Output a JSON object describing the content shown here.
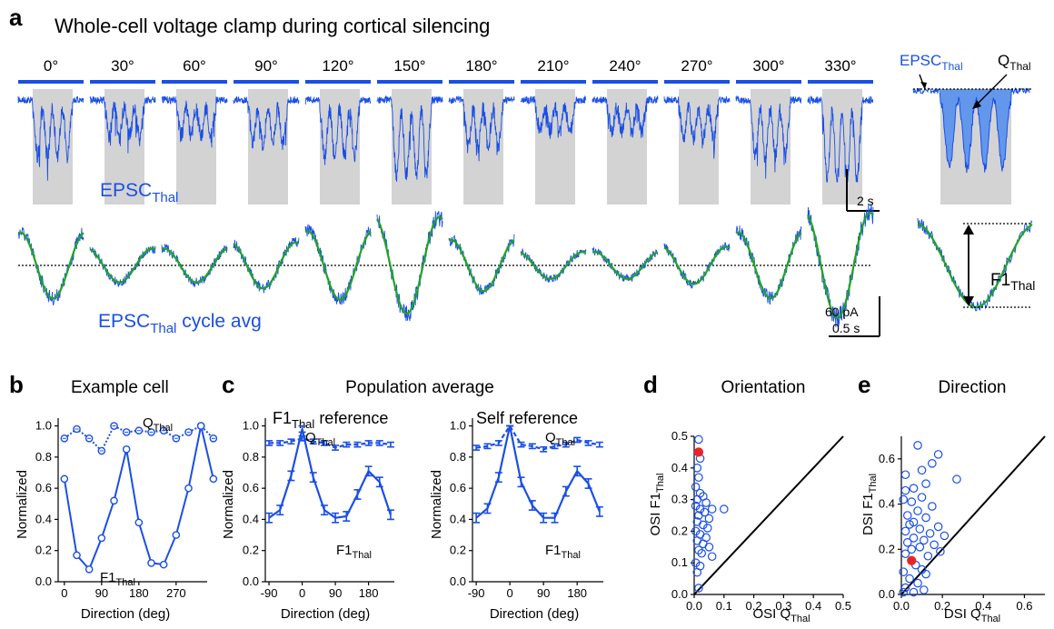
{
  "panel_a": {
    "letter": "a",
    "title": "Whole-cell voltage clamp during cortical silencing",
    "directions": [
      "0°",
      "30°",
      "60°",
      "90°",
      "120°",
      "150°",
      "180°",
      "210°",
      "240°",
      "270°",
      "300°",
      "330°"
    ],
    "epsc_label": "EPSC",
    "epsc_sub": "Thal",
    "cycle_label": "EPSC",
    "cycle_sub": "Thal",
    "cycle_suffix": " cycle avg",
    "q_label": "Q",
    "q_sub": "Thal",
    "f1_label": "F1",
    "f1_sub": "Thal",
    "scale_time_1": "2 s",
    "scale_current": "60 pA",
    "scale_time_2": "0.5 s",
    "cycle_amplitudes": [
      0.55,
      0.18,
      0.18,
      0.32,
      0.58,
      0.9,
      0.38,
      0.1,
      0.1,
      0.22,
      0.55,
      1.0
    ],
    "trace_color": "#1a4fe6",
    "fit_color": "#22a322",
    "stim_color": "#d3d3d3"
  },
  "panel_b": {
    "letter": "b",
    "title": "Example cell",
    "ylabel": "Normalized",
    "xlabel": "Direction (deg)",
    "xticks": [
      "0",
      "90",
      "180",
      "270"
    ],
    "yticks": [
      "0.0",
      "0.2",
      "0.4",
      "0.6",
      "0.8",
      "1.0"
    ],
    "q_label": "Q",
    "q_sub": "Thal",
    "f1_label": "F1",
    "f1_sub": "Thal"
  },
  "panel_c": {
    "letter": "c",
    "title": "Population average",
    "left_title": "F1",
    "left_title_sub": "Thal",
    "left_title_suffix": " reference",
    "right_title": "Self reference",
    "ylabel": "Normalized",
    "xlabel": "Direction (deg)",
    "xticks": [
      "-90",
      "0",
      "90",
      "180"
    ],
    "yticks": [
      "0.0",
      "0.2",
      "0.4",
      "0.6",
      "0.8",
      "1.0"
    ],
    "q_label": "Q",
    "q_sub": "Thal",
    "f1_label": "F1",
    "f1_sub": "Thal"
  },
  "panel_d": {
    "letter": "d",
    "title": "Orientation",
    "ylabel": "OSI F1",
    "ylabel_sub": "Thal",
    "xlabel": "OSI Q",
    "xlabel_sub": "Thal",
    "xticks": [
      "0.0",
      "0.1",
      "0.2",
      "0.3",
      "0.4",
      "0.5"
    ],
    "yticks": [
      "0.0",
      "0.1",
      "0.2",
      "0.3",
      "0.4",
      "0.5"
    ]
  },
  "panel_e": {
    "letter": "e",
    "title": "Direction",
    "ylabel": "DSI F1",
    "ylabel_sub": "Thal",
    "xlabel": "DSI Q",
    "xlabel_sub": "Thal",
    "xticks": [
      "0.0",
      "0.2",
      "0.4",
      "0.6"
    ],
    "yticks": [
      "0.0",
      "0.2",
      "0.4",
      "0.6"
    ]
  },
  "chart_data": [
    {
      "type": "line",
      "panel": "b",
      "title": "Example cell",
      "xlabel": "Direction (deg)",
      "ylabel": "Normalized",
      "xlim": [
        -15,
        345
      ],
      "ylim": [
        0,
        1.05
      ],
      "x": [
        0,
        30,
        60,
        90,
        120,
        150,
        180,
        210,
        240,
        270,
        300,
        330,
        360
      ],
      "series": [
        {
          "name": "QThal",
          "values": [
            0.92,
            0.98,
            0.92,
            0.84,
            1.0,
            0.96,
            0.97,
            0.96,
            0.97,
            0.92,
            0.96,
            1.0,
            0.92
          ]
        },
        {
          "name": "F1Thal",
          "values": [
            0.66,
            0.17,
            0.08,
            0.28,
            0.52,
            0.85,
            0.38,
            0.12,
            0.11,
            0.3,
            0.6,
            1.0,
            0.66
          ]
        }
      ]
    },
    {
      "type": "line",
      "panel": "c-left",
      "title": "F1Thal reference",
      "xlabel": "Direction (deg)",
      "ylabel": "Normalized",
      "xlim": [
        -100,
        250
      ],
      "ylim": [
        0,
        1.05
      ],
      "x": [
        -90,
        -60,
        -30,
        0,
        30,
        60,
        90,
        120,
        150,
        180,
        210,
        240
      ],
      "series": [
        {
          "name": "QThal",
          "values": [
            0.89,
            0.89,
            0.9,
            0.92,
            0.9,
            0.89,
            0.86,
            0.88,
            0.88,
            0.89,
            0.89,
            0.88
          ],
          "error": [
            0.015,
            0.015,
            0.015,
            0.015,
            0.015,
            0.015,
            0.015,
            0.015,
            0.015,
            0.015,
            0.015,
            0.015
          ]
        },
        {
          "name": "F1Thal",
          "values": [
            0.41,
            0.46,
            0.68,
            0.98,
            0.67,
            0.46,
            0.41,
            0.42,
            0.56,
            0.71,
            0.64,
            0.43
          ],
          "error": [
            0.03,
            0.03,
            0.03,
            0.02,
            0.03,
            0.03,
            0.03,
            0.03,
            0.03,
            0.03,
            0.03,
            0.03
          ]
        }
      ]
    },
    {
      "type": "line",
      "panel": "c-right",
      "title": "Self reference",
      "xlabel": "Direction (deg)",
      "ylabel": "Normalized",
      "xlim": [
        -100,
        250
      ],
      "ylim": [
        0,
        1.05
      ],
      "x": [
        -90,
        -60,
        -30,
        0,
        30,
        60,
        90,
        120,
        150,
        180,
        210,
        240
      ],
      "series": [
        {
          "name": "QThal",
          "values": [
            0.86,
            0.87,
            0.89,
            1.0,
            0.88,
            0.87,
            0.85,
            0.87,
            0.88,
            0.91,
            0.89,
            0.88
          ],
          "error": [
            0.015,
            0.015,
            0.015,
            0.0,
            0.015,
            0.015,
            0.015,
            0.015,
            0.015,
            0.015,
            0.015,
            0.015
          ]
        },
        {
          "name": "F1Thal",
          "values": [
            0.41,
            0.47,
            0.67,
            1.0,
            0.64,
            0.49,
            0.41,
            0.41,
            0.58,
            0.71,
            0.63,
            0.45
          ],
          "error": [
            0.03,
            0.03,
            0.03,
            0.0,
            0.03,
            0.03,
            0.03,
            0.03,
            0.03,
            0.03,
            0.03,
            0.03
          ]
        }
      ]
    },
    {
      "type": "scatter",
      "panel": "d",
      "title": "Orientation",
      "xlabel": "OSI QThal",
      "ylabel": "OSI F1Thal",
      "xlim": [
        0,
        0.5
      ],
      "ylim": [
        0,
        0.5
      ],
      "highlight": [
        0.015,
        0.45
      ],
      "points": [
        [
          0.015,
          0.49
        ],
        [
          0.02,
          0.43
        ],
        [
          0.01,
          0.4
        ],
        [
          0.015,
          0.37
        ],
        [
          0.005,
          0.34
        ],
        [
          0.02,
          0.32
        ],
        [
          0.03,
          0.31
        ],
        [
          0.01,
          0.3
        ],
        [
          0.04,
          0.29
        ],
        [
          0.005,
          0.28
        ],
        [
          0.02,
          0.27
        ],
        [
          0.06,
          0.27
        ],
        [
          0.035,
          0.26
        ],
        [
          0.015,
          0.25
        ],
        [
          0.05,
          0.24
        ],
        [
          0.01,
          0.23
        ],
        [
          0.03,
          0.22
        ],
        [
          0.045,
          0.21
        ],
        [
          0.005,
          0.2
        ],
        [
          0.02,
          0.19
        ],
        [
          0.04,
          0.18
        ],
        [
          0.01,
          0.17
        ],
        [
          0.03,
          0.16
        ],
        [
          0.05,
          0.15
        ],
        [
          0.015,
          0.14
        ],
        [
          0.025,
          0.13
        ],
        [
          0.06,
          0.12
        ],
        [
          0.005,
          0.1
        ],
        [
          0.02,
          0.09
        ],
        [
          0.01,
          0.07
        ],
        [
          0.015,
          0.02
        ],
        [
          0.1,
          0.27
        ]
      ]
    },
    {
      "type": "scatter",
      "panel": "e",
      "title": "Direction",
      "xlabel": "DSI QThal",
      "ylabel": "DSI F1Thal",
      "xlim": [
        0,
        0.7
      ],
      "ylim": [
        0,
        0.7
      ],
      "highlight": [
        0.05,
        0.15
      ],
      "points": [
        [
          0.08,
          0.66
        ],
        [
          0.18,
          0.62
        ],
        [
          0.15,
          0.58
        ],
        [
          0.1,
          0.55
        ],
        [
          0.02,
          0.53
        ],
        [
          0.27,
          0.51
        ],
        [
          0.12,
          0.49
        ],
        [
          0.06,
          0.47
        ],
        [
          0.02,
          0.46
        ],
        [
          0.1,
          0.43
        ],
        [
          0.01,
          0.42
        ],
        [
          0.05,
          0.41
        ],
        [
          0.15,
          0.39
        ],
        [
          0.08,
          0.37
        ],
        [
          0.03,
          0.35
        ],
        [
          0.12,
          0.34
        ],
        [
          0.06,
          0.32
        ],
        [
          0.04,
          0.31
        ],
        [
          0.18,
          0.3
        ],
        [
          0.09,
          0.29
        ],
        [
          0.02,
          0.28
        ],
        [
          0.14,
          0.27
        ],
        [
          0.21,
          0.26
        ],
        [
          0.06,
          0.25
        ],
        [
          0.11,
          0.24
        ],
        [
          0.03,
          0.23
        ],
        [
          0.16,
          0.22
        ],
        [
          0.09,
          0.21
        ],
        [
          0.05,
          0.2
        ],
        [
          0.19,
          0.19
        ],
        [
          0.02,
          0.18
        ],
        [
          0.13,
          0.17
        ],
        [
          0.07,
          0.13
        ],
        [
          0.1,
          0.11
        ],
        [
          0.01,
          0.1
        ],
        [
          0.12,
          0.09
        ],
        [
          0.04,
          0.07
        ],
        [
          0.08,
          0.05
        ],
        [
          0.02,
          0.03
        ],
        [
          0.11,
          0.02
        ],
        [
          0.06,
          0.01
        ],
        [
          0.01,
          0.01
        ]
      ]
    }
  ]
}
